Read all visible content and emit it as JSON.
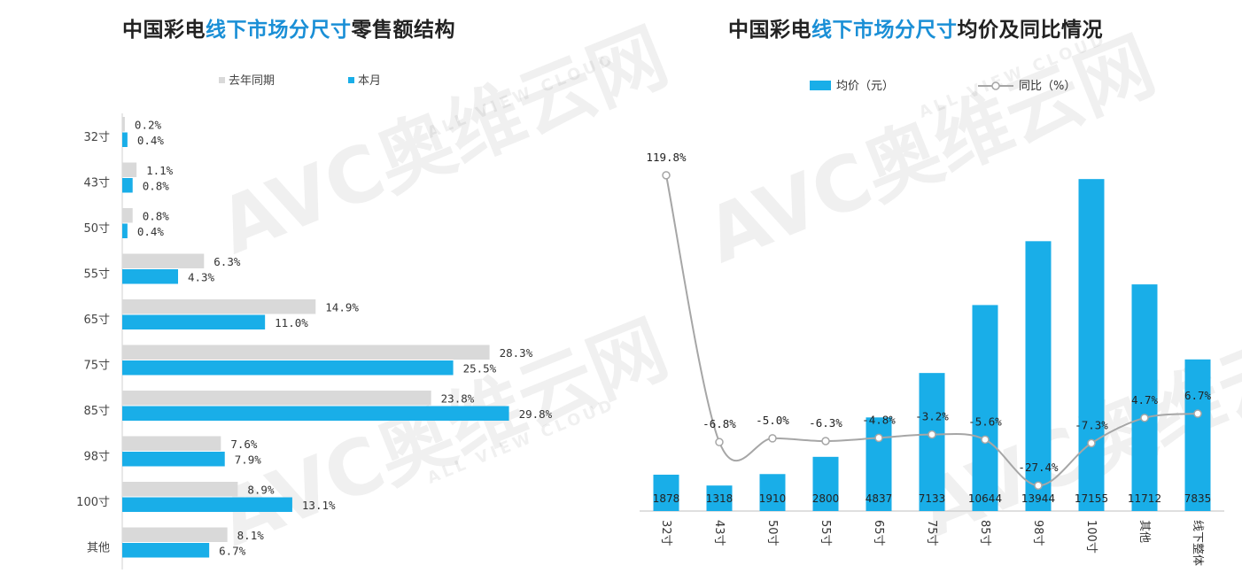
{
  "colors": {
    "current": "#19aee8",
    "previous": "#d9d9d9",
    "line": "#a6a6a6",
    "highlight": "#1a8fd6"
  },
  "watermark": {
    "brand": "AVC奥维云网",
    "sub": "ALL VIEW CLOUD"
  },
  "chart_data": [
    {
      "type": "bar",
      "orientation": "horizontal",
      "title_parts": [
        "中国彩电",
        "线下市场分尺寸",
        "零售额结构"
      ],
      "categories": [
        "32寸",
        "43寸",
        "50寸",
        "55寸",
        "65寸",
        "75寸",
        "85寸",
        "98寸",
        "100寸",
        "其他"
      ],
      "series": [
        {
          "name": "去年同期",
          "values": [
            0.2,
            1.1,
            0.8,
            6.3,
            14.9,
            28.3,
            23.8,
            7.6,
            8.9,
            8.1
          ],
          "labels": [
            "0.2%",
            "1.1%",
            "0.8%",
            "6.3%",
            "14.9%",
            "28.3%",
            "23.8%",
            "7.6%",
            "8.9%",
            "8.1%"
          ]
        },
        {
          "name": "本月",
          "values": [
            0.4,
            0.8,
            0.4,
            4.3,
            11.0,
            25.5,
            29.8,
            7.9,
            13.1,
            6.7
          ],
          "labels": [
            "0.4%",
            "0.8%",
            "0.4%",
            "4.3%",
            "11.0%",
            "25.5%",
            "29.8%",
            "7.9%",
            "13.1%",
            "6.7%"
          ]
        }
      ],
      "legend": "top"
    },
    {
      "type": "bar+line",
      "title_parts": [
        "中国彩电",
        "线下市场分尺寸",
        "均价及同比情况"
      ],
      "categories": [
        "32寸",
        "43寸",
        "50寸",
        "55寸",
        "65寸",
        "75寸",
        "85寸",
        "98寸",
        "100寸",
        "其他",
        "线下整体"
      ],
      "bar_series": {
        "name": "均价（元）",
        "values": [
          1878,
          1318,
          1910,
          2800,
          4837,
          7133,
          10644,
          13944,
          17155,
          11712,
          7835
        ],
        "labels": [
          "1878",
          "1318",
          "1910",
          "2800",
          "4837",
          "7133",
          "10644",
          "13944",
          "17155",
          "11712",
          "7835"
        ]
      },
      "line_series": {
        "name": "同比（%）",
        "values": [
          119.8,
          -6.8,
          -5.0,
          -6.3,
          -4.8,
          -3.2,
          -5.6,
          -27.4,
          -7.3,
          4.7,
          6.7
        ],
        "labels": [
          "119.8%",
          "-6.8%",
          "-5.0%",
          "-6.3%",
          "-4.8%",
          "-3.2%",
          "-5.6%",
          "-27.4%",
          "-7.3%",
          "4.7%",
          "6.7%"
        ]
      },
      "legend": "top"
    }
  ]
}
